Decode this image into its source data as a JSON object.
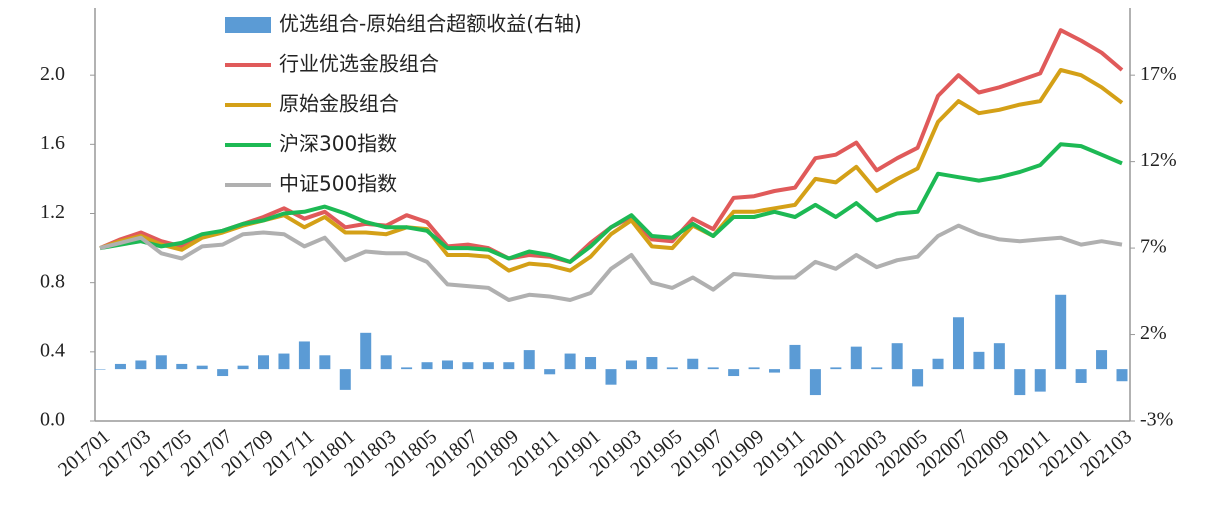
{
  "chart_data": {
    "type": "line",
    "categories": [
      "201701",
      null,
      "201703",
      null,
      "201705",
      null,
      "201707",
      null,
      "201709",
      null,
      "201711",
      null,
      "201801",
      null,
      "201803",
      null,
      "201805",
      null,
      "201807",
      null,
      "201809",
      null,
      "201811",
      null,
      "201901",
      null,
      "201903",
      null,
      "201905",
      null,
      "201907",
      null,
      "201909",
      null,
      "201911",
      null,
      "202001",
      null,
      "202003",
      null,
      "202005",
      null,
      "202007",
      null,
      "202009",
      null,
      "202011",
      null,
      "202101",
      null,
      "202103"
    ],
    "series": [
      {
        "name": "优选组合-原始组合超额收益(右轴)",
        "type": "bar",
        "axis": "y2",
        "color": "#5b9bd5",
        "values": [
          0,
          0.3,
          0.5,
          0.8,
          0.3,
          0.2,
          -0.4,
          0.2,
          0.8,
          0.9,
          1.6,
          0.8,
          -1.2,
          2.1,
          0.8,
          0.1,
          0.4,
          0.5,
          0.4,
          0.4,
          0.4,
          1.1,
          -0.3,
          0.9,
          0.7,
          -0.9,
          0.5,
          0.7,
          0.1,
          0.6,
          0.1,
          -0.4,
          0.1,
          -0.2,
          1.4,
          -1.5,
          0.1,
          1.3,
          0.1,
          1.5,
          -1.0,
          0.6,
          3.0,
          1.0,
          1.5,
          -1.5,
          -1.3,
          4.3,
          -0.8,
          1.1,
          -0.7
        ]
      },
      {
        "name": "行业优选金股组合",
        "type": "line",
        "color": "#e05a5a",
        "values": [
          1.0,
          1.05,
          1.09,
          1.04,
          1.01,
          1.07,
          1.1,
          1.14,
          1.18,
          1.23,
          1.17,
          1.21,
          1.12,
          1.14,
          1.13,
          1.19,
          1.15,
          1.01,
          1.02,
          1.0,
          0.94,
          0.96,
          0.95,
          0.92,
          1.03,
          1.12,
          1.18,
          1.05,
          1.04,
          1.17,
          1.11,
          1.29,
          1.3,
          1.33,
          1.35,
          1.52,
          1.54,
          1.61,
          1.45,
          1.52,
          1.58,
          1.88,
          2.0,
          1.9,
          1.93,
          1.97,
          2.01,
          2.26,
          2.2,
          2.13,
          2.03
        ]
      },
      {
        "name": "原始金股组合",
        "type": "line",
        "color": "#d4a017",
        "values": [
          1.0,
          1.04,
          1.07,
          1.02,
          0.99,
          1.06,
          1.09,
          1.13,
          1.16,
          1.19,
          1.12,
          1.18,
          1.09,
          1.09,
          1.08,
          1.12,
          1.11,
          0.96,
          0.96,
          0.95,
          0.87,
          0.91,
          0.9,
          0.87,
          0.95,
          1.08,
          1.16,
          1.01,
          1.0,
          1.13,
          1.07,
          1.21,
          1.21,
          1.23,
          1.25,
          1.4,
          1.38,
          1.47,
          1.33,
          1.4,
          1.46,
          1.73,
          1.85,
          1.78,
          1.8,
          1.83,
          1.85,
          2.03,
          2.0,
          1.93,
          1.84
        ]
      },
      {
        "name": "沪深300指数",
        "type": "line",
        "color": "#1db954",
        "values": [
          1.0,
          1.02,
          1.04,
          1.01,
          1.03,
          1.08,
          1.1,
          1.14,
          1.16,
          1.2,
          1.21,
          1.24,
          1.2,
          1.15,
          1.12,
          1.12,
          1.1,
          1.0,
          1.0,
          0.99,
          0.94,
          0.98,
          0.96,
          0.92,
          1.01,
          1.12,
          1.19,
          1.07,
          1.06,
          1.14,
          1.07,
          1.18,
          1.18,
          1.21,
          1.18,
          1.25,
          1.18,
          1.26,
          1.16,
          1.2,
          1.21,
          1.43,
          1.41,
          1.39,
          1.41,
          1.44,
          1.48,
          1.6,
          1.59,
          1.54,
          1.49
        ]
      },
      {
        "name": "中证500指数",
        "type": "line",
        "color": "#b0b0b0",
        "values": [
          1.0,
          1.03,
          1.06,
          0.97,
          0.94,
          1.01,
          1.02,
          1.08,
          1.09,
          1.08,
          1.01,
          1.06,
          0.93,
          0.98,
          0.97,
          0.97,
          0.92,
          0.79,
          0.78,
          0.77,
          0.7,
          0.73,
          0.72,
          0.7,
          0.74,
          0.88,
          0.96,
          0.8,
          0.77,
          0.83,
          0.76,
          0.85,
          0.84,
          0.83,
          0.83,
          0.92,
          0.88,
          0.96,
          0.89,
          0.93,
          0.95,
          1.07,
          1.13,
          1.08,
          1.05,
          1.04,
          1.05,
          1.06,
          1.02,
          1.04,
          1.02
        ]
      }
    ],
    "ylim": [
      0,
      2.4
    ],
    "yticks": [
      {
        "value": 0,
        "label": "0.0"
      },
      0.4,
      0.8,
      1.2,
      1.6,
      {
        "value": 2,
        "label": "2.0"
      }
    ],
    "y2lim": [
      -3,
      21
    ],
    "y2ticks": [
      {
        "value": -3,
        "label": "-3%"
      },
      {
        "value": 2,
        "label": "2%"
      },
      {
        "value": 7,
        "label": "7%"
      },
      {
        "value": 12,
        "label": "12%"
      },
      {
        "value": 17,
        "label": "17%"
      }
    ],
    "legend": "upper left"
  }
}
